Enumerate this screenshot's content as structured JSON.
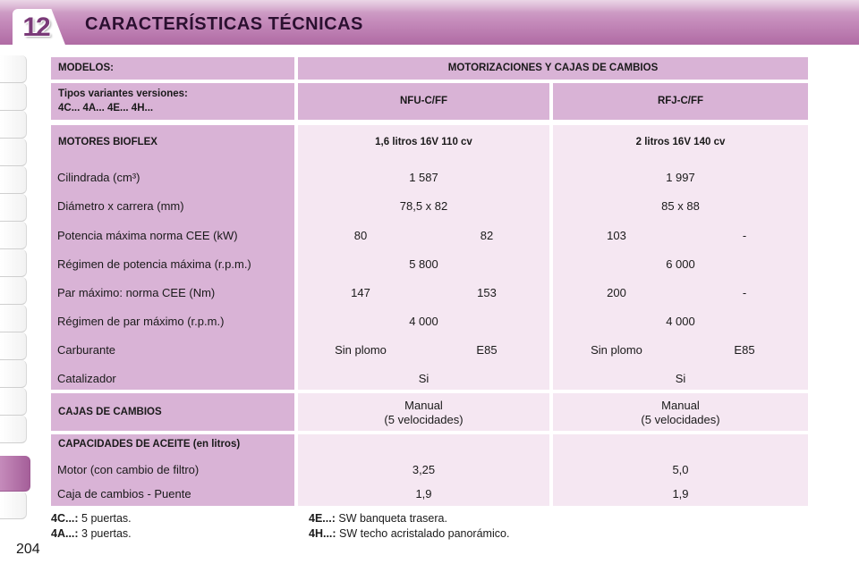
{
  "header": {
    "chapter": "12",
    "title": "CARACTERÍSTICAS TÉCNICAS"
  },
  "table": {
    "models_label": "MODELOS:",
    "engines_header": "MOTORIZACIONES Y CAJAS DE CAMBIOS",
    "variants_label_line1": "Tipos variantes versiones:",
    "variants_label_line2": "4C... 4A... 4E... 4H...",
    "col1_code": "NFU-C/FF",
    "col2_code": "RFJ-C/FF",
    "bioflex_label": "MOTORES BIOFLEX",
    "col1_engine": "1,6 litros 16V 110 cv",
    "col2_engine": "2 litros 16V 140 cv",
    "rows": [
      {
        "label": "Cilindrada (cm³)",
        "c1": "1 587",
        "c2": "1 997"
      },
      {
        "label": "Diámetro x carrera (mm)",
        "c1": "78,5 x 82",
        "c2": "85 x 88"
      },
      {
        "label": "Potencia máxima norma CEE (kW)",
        "c1a": "80",
        "c1b": "82",
        "c2a": "103",
        "c2b": "-"
      },
      {
        "label": "Régimen de potencia máxima (r.p.m.)",
        "c1": "5 800",
        "c2": "6 000"
      },
      {
        "label": "Par máximo: norma CEE (Nm)",
        "c1a": "147",
        "c1b": "153",
        "c2a": "200",
        "c2b": "-"
      },
      {
        "label": "Régimen de par máximo (r.p.m.)",
        "c1": "4 000",
        "c2": "4 000"
      },
      {
        "label": "Carburante",
        "c1a": "Sin plomo",
        "c1b": "E85",
        "c2a": "Sin plomo",
        "c2b": "E85"
      },
      {
        "label": "Catalizador",
        "c1": "Si",
        "c2": "Si"
      }
    ],
    "gearbox_label": "CAJAS DE CAMBIOS",
    "gearbox_c1_line1": "Manual",
    "gearbox_c1_line2": "(5 velocidades)",
    "gearbox_c2_line1": "Manual",
    "gearbox_c2_line2": "(5 velocidades)",
    "oil_label": "CAPACIDADES DE ACEITE (en litros)",
    "oil_rows": [
      {
        "label": "Motor (con cambio de filtro)",
        "c1": "3,25",
        "c2": "5,0"
      },
      {
        "label": "Caja de cambios - Puente",
        "c1": "1,9",
        "c2": "1,9"
      }
    ]
  },
  "footnotes": {
    "n1_key": "4C...:",
    "n1_text": "5 puertas.",
    "n2_key": "4A...:",
    "n2_text": "3 puertas.",
    "n3_key": "4E...:",
    "n3_text": "SW banqueta trasera.",
    "n4_key": "4H...:",
    "n4_text": "SW techo acristalado panorámico."
  },
  "page_number": "204",
  "colors": {
    "header_band": "#c68dbc",
    "label_cell": "#d9b3d6",
    "value_cell": "#f5e7f2"
  }
}
